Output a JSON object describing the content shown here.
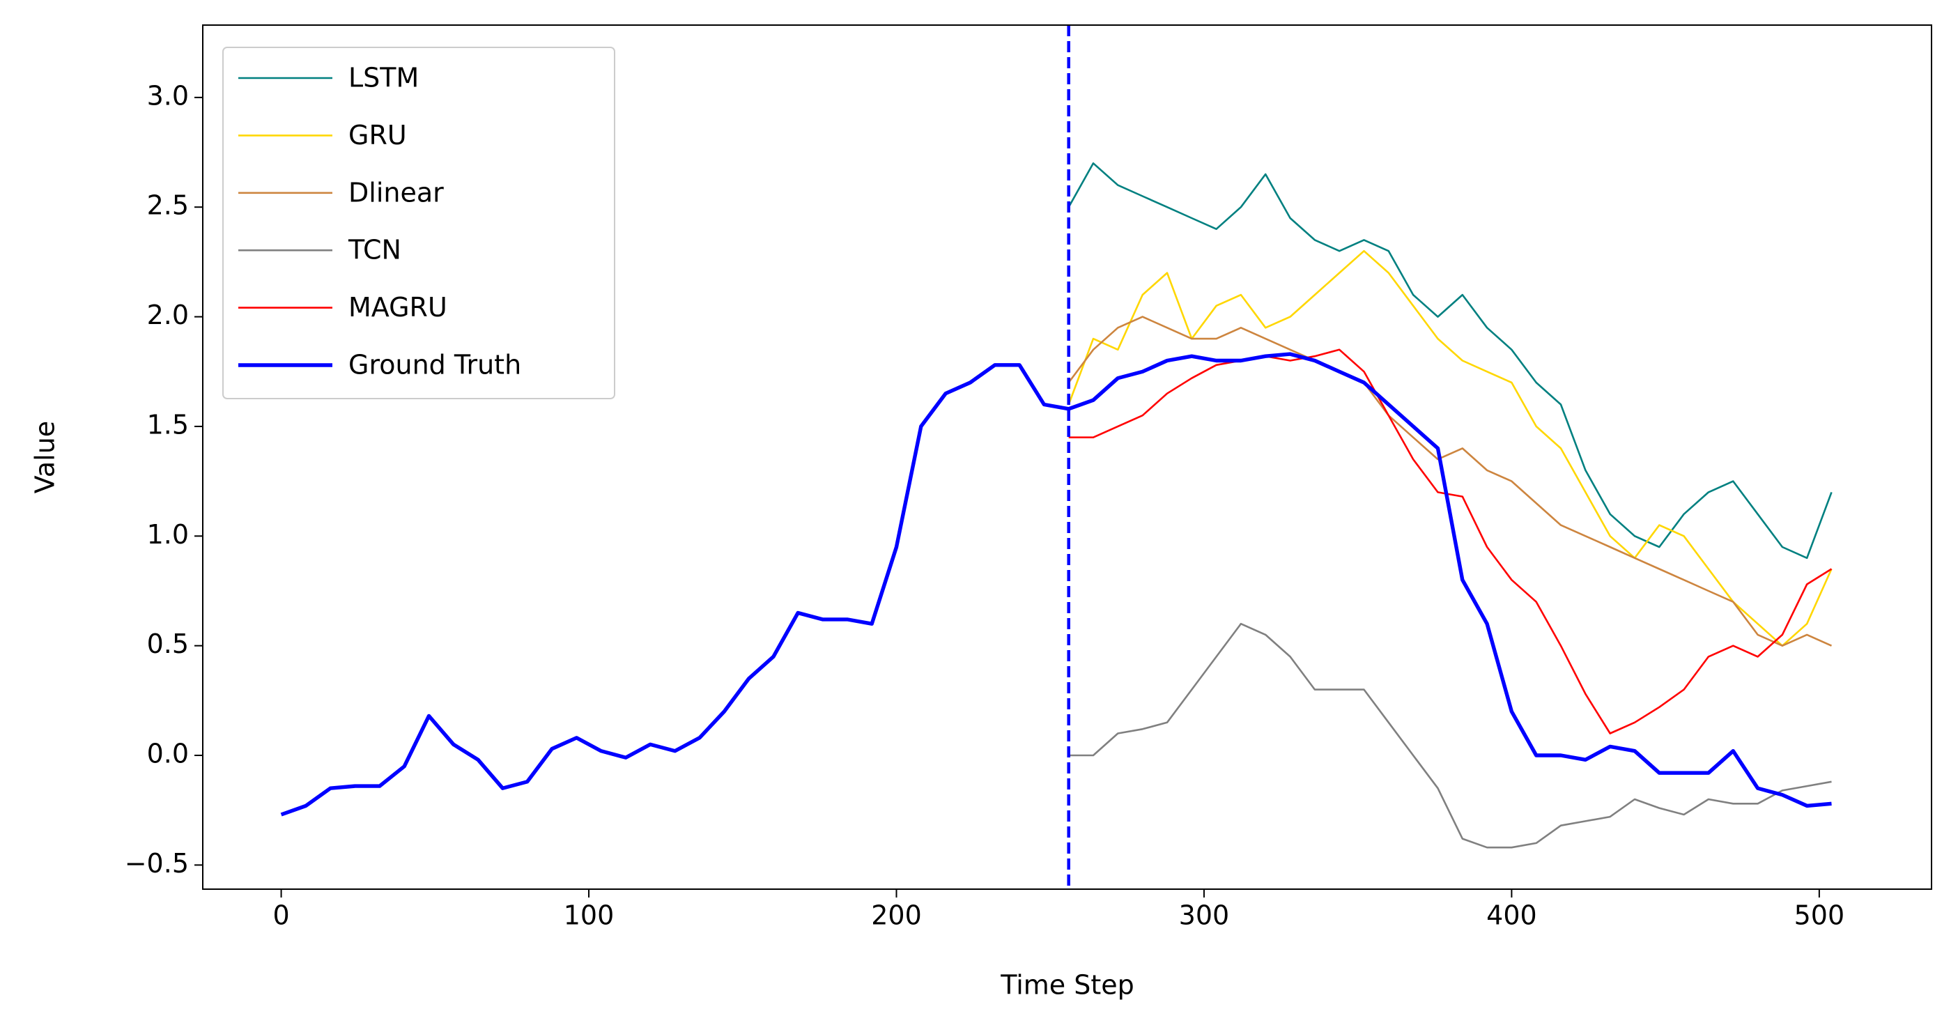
{
  "chart_data": {
    "type": "line",
    "x_label": "Time Step",
    "y_label": "Value",
    "x": [
      0,
      8,
      16,
      24,
      32,
      40,
      48,
      56,
      64,
      72,
      80,
      88,
      96,
      104,
      112,
      120,
      128,
      136,
      144,
      152,
      160,
      168,
      176,
      184,
      192,
      200,
      208,
      216,
      224,
      232,
      240,
      248,
      256,
      264,
      272,
      280,
      288,
      296,
      304,
      312,
      320,
      328,
      336,
      344,
      352,
      360,
      368,
      376,
      384,
      392,
      400,
      408,
      416,
      424,
      432,
      440,
      448,
      456,
      464,
      472,
      480,
      488,
      496,
      504
    ],
    "series": [
      {
        "name": "LSTM",
        "color": "#008080",
        "values": [
          null,
          null,
          null,
          null,
          null,
          null,
          null,
          null,
          null,
          null,
          null,
          null,
          null,
          null,
          null,
          null,
          null,
          null,
          null,
          null,
          null,
          null,
          null,
          null,
          null,
          null,
          null,
          null,
          null,
          null,
          null,
          null,
          2.5,
          2.7,
          2.6,
          2.55,
          2.5,
          2.45,
          2.4,
          2.5,
          2.65,
          2.45,
          2.35,
          2.3,
          2.35,
          2.3,
          2.1,
          2.0,
          2.1,
          1.95,
          1.85,
          1.7,
          1.6,
          1.3,
          1.1,
          1.0,
          0.95,
          1.1,
          1.2,
          1.25,
          1.1,
          0.95,
          0.9,
          1.2
        ]
      },
      {
        "name": "GRU",
        "color": "#ffd700",
        "values": [
          null,
          null,
          null,
          null,
          null,
          null,
          null,
          null,
          null,
          null,
          null,
          null,
          null,
          null,
          null,
          null,
          null,
          null,
          null,
          null,
          null,
          null,
          null,
          null,
          null,
          null,
          null,
          null,
          null,
          null,
          null,
          null,
          1.6,
          1.9,
          1.85,
          2.1,
          2.2,
          1.9,
          2.05,
          2.1,
          1.95,
          2.0,
          2.1,
          2.2,
          2.3,
          2.2,
          2.05,
          1.9,
          1.8,
          1.75,
          1.7,
          1.5,
          1.4,
          1.2,
          1.0,
          0.9,
          1.05,
          1.0,
          0.85,
          0.7,
          0.6,
          0.5,
          0.6,
          0.85
        ]
      },
      {
        "name": "Dlinear",
        "color": "#cd853f",
        "values": [
          null,
          null,
          null,
          null,
          null,
          null,
          null,
          null,
          null,
          null,
          null,
          null,
          null,
          null,
          null,
          null,
          null,
          null,
          null,
          null,
          null,
          null,
          null,
          null,
          null,
          null,
          null,
          null,
          null,
          null,
          null,
          null,
          1.7,
          1.85,
          1.95,
          2.0,
          1.95,
          1.9,
          1.9,
          1.95,
          1.9,
          1.85,
          1.8,
          1.75,
          1.7,
          1.55,
          1.45,
          1.35,
          1.4,
          1.3,
          1.25,
          1.15,
          1.05,
          1.0,
          0.95,
          0.9,
          0.85,
          0.8,
          0.75,
          0.7,
          0.55,
          0.5,
          0.55,
          0.5
        ]
      },
      {
        "name": "TCN",
        "color": "#808080",
        "values": [
          null,
          null,
          null,
          null,
          null,
          null,
          null,
          null,
          null,
          null,
          null,
          null,
          null,
          null,
          null,
          null,
          null,
          null,
          null,
          null,
          null,
          null,
          null,
          null,
          null,
          null,
          null,
          null,
          null,
          null,
          null,
          null,
          0.0,
          0.0,
          0.1,
          0.12,
          0.15,
          0.3,
          0.45,
          0.6,
          0.55,
          0.45,
          0.3,
          0.3,
          0.3,
          0.15,
          0.0,
          -0.15,
          -0.38,
          -0.42,
          -0.42,
          -0.4,
          -0.32,
          -0.3,
          -0.28,
          -0.2,
          -0.24,
          -0.27,
          -0.2,
          -0.22,
          -0.22,
          -0.16,
          -0.14,
          -0.12
        ]
      },
      {
        "name": "MAGRU",
        "color": "#ff0000",
        "values": [
          null,
          null,
          null,
          null,
          null,
          null,
          null,
          null,
          null,
          null,
          null,
          null,
          null,
          null,
          null,
          null,
          null,
          null,
          null,
          null,
          null,
          null,
          null,
          null,
          null,
          null,
          null,
          null,
          null,
          null,
          null,
          null,
          1.45,
          1.45,
          1.5,
          1.55,
          1.65,
          1.72,
          1.78,
          1.8,
          1.82,
          1.8,
          1.82,
          1.85,
          1.75,
          1.55,
          1.35,
          1.2,
          1.18,
          0.95,
          0.8,
          0.7,
          0.5,
          0.28,
          0.1,
          0.15,
          0.22,
          0.3,
          0.45,
          0.5,
          0.45,
          0.55,
          0.78,
          0.85
        ]
      },
      {
        "name": "Ground Truth",
        "color": "#0000ff",
        "values": [
          -0.27,
          -0.23,
          -0.15,
          -0.14,
          -0.14,
          -0.05,
          0.18,
          0.05,
          -0.02,
          -0.15,
          -0.12,
          0.03,
          0.08,
          0.02,
          -0.01,
          0.05,
          0.02,
          0.08,
          0.2,
          0.35,
          0.45,
          0.65,
          0.62,
          0.62,
          0.6,
          0.95,
          1.5,
          1.65,
          1.7,
          1.78,
          1.78,
          1.6,
          1.58,
          1.62,
          1.72,
          1.75,
          1.8,
          1.82,
          1.8,
          1.8,
          1.82,
          1.83,
          1.8,
          1.75,
          1.7,
          1.6,
          1.5,
          1.4,
          0.8,
          0.6,
          0.2,
          0.0,
          0.0,
          -0.02,
          0.04,
          0.02,
          -0.08,
          -0.08,
          -0.08,
          0.02,
          -0.15,
          -0.18,
          -0.23,
          -0.22
        ]
      }
    ],
    "vline": 256,
    "vline_color": "#0000ff",
    "xlim": [
      -25.5,
      536.5
    ],
    "ylim": [
      -0.61,
      3.33
    ],
    "xticks": [
      0,
      100,
      200,
      300,
      400,
      500
    ],
    "yticks": [
      {
        "value": -0.5,
        "label": "−0.5"
      },
      {
        "value": 0,
        "label": "0.0"
      },
      {
        "value": 0.5,
        "label": "0.5"
      },
      {
        "value": 1,
        "label": "1.0"
      },
      {
        "value": 1.5,
        "label": "1.5"
      },
      {
        "value": 2,
        "label": "2.0"
      },
      {
        "value": 2.5,
        "label": "2.5"
      },
      {
        "value": 3,
        "label": "3.0"
      }
    ],
    "grid": false,
    "legend": "upper left"
  }
}
